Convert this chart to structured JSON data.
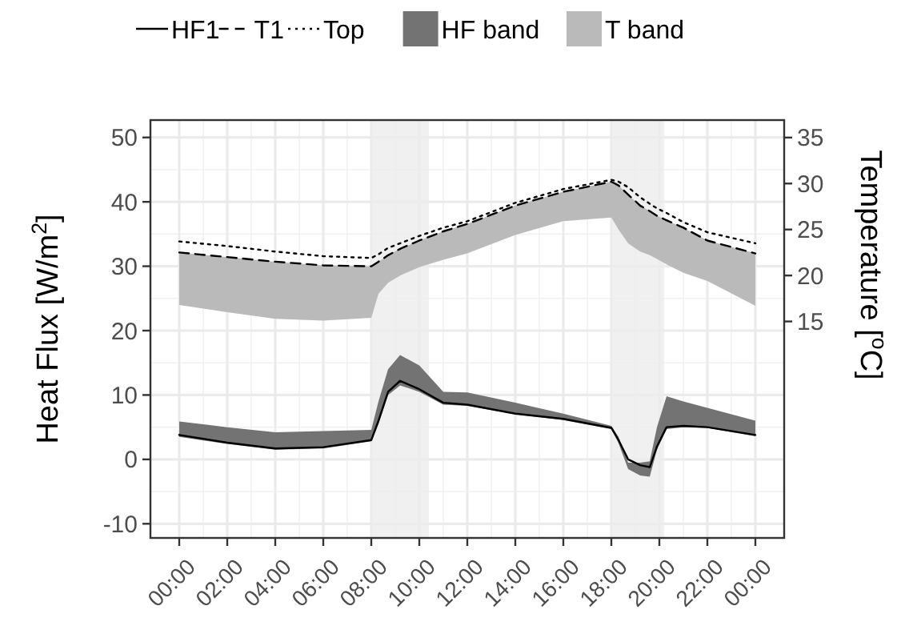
{
  "chart_data": {
    "type": "line",
    "ylabel": "Heat Flux [W/m$^{2}$]",
    "y2label": "Temperature [$^{o}$C]",
    "x": [
      0,
      2,
      4,
      6,
      8,
      8.3,
      8.7,
      9.2,
      10,
      11,
      12,
      14,
      16,
      18,
      18.3,
      18.7,
      19.2,
      19.6,
      19.9,
      20.3,
      21,
      22,
      24
    ],
    "series": [
      {
        "name": "HF1",
        "color": "#000000",
        "line_style": "solid",
        "values": [
          3.8,
          2.6,
          1.7,
          1.9,
          3.0,
          6,
          10.5,
          12.2,
          10.9,
          8.8,
          8.5,
          7.1,
          6.3,
          4.9,
          3,
          0,
          -0.9,
          -1.2,
          2,
          5,
          5.2,
          5,
          3.8
        ]
      },
      {
        "name": "T1",
        "axis": "y2",
        "color": "#000000",
        "line_style": "dashed",
        "values": [
          22.5,
          22,
          21.5,
          21.1,
          21.0,
          21.5,
          22.2,
          22.9,
          23.8,
          24.8,
          25.6,
          27.6,
          29.1,
          30.2,
          29.8,
          28.8,
          27.6,
          27,
          26.5,
          26,
          25.2,
          23.8,
          22.4
        ]
      },
      {
        "name": "Top",
        "axis": "y2",
        "color": "#000000",
        "line_style": "dotted",
        "values": [
          23.7,
          23.2,
          22.6,
          22.1,
          21.9,
          22.3,
          23,
          23.5,
          24.3,
          25.2,
          25.9,
          27.9,
          29.4,
          30.4,
          30.2,
          29.6,
          28.5,
          27.8,
          27.3,
          26.8,
          25.8,
          24.7,
          23.5
        ]
      },
      {
        "name": "HF band",
        "color": "#737373",
        "values": [
          null,
          null,
          null,
          null,
          null,
          null,
          null,
          null,
          null,
          null,
          null,
          null,
          null,
          null,
          null,
          null,
          null,
          null,
          null,
          null,
          null,
          null,
          null
        ],
        "lower": [
          3.5,
          2.4,
          1.5,
          1.7,
          2.8,
          5.5,
          10,
          11.5,
          10.5,
          8.5,
          8.3,
          7,
          6.1,
          4.7,
          2.5,
          -1.5,
          -2.5,
          -2.7,
          1.5,
          4.7,
          5,
          4.9,
          3.6
        ],
        "upper": [
          5.9,
          5,
          4.2,
          4.4,
          4.6,
          9,
          14,
          16.2,
          14.6,
          10.5,
          10.4,
          8.8,
          7.1,
          5.2,
          3.5,
          -0.5,
          -0.5,
          -0.3,
          5,
          9.8,
          9,
          8,
          6
        ]
      },
      {
        "name": "T band",
        "axis": "y2",
        "color": "#bababa",
        "values": [
          null,
          null,
          null,
          null,
          null,
          null,
          null,
          null,
          null,
          null,
          null,
          null,
          null,
          null,
          null,
          null,
          null,
          null,
          null,
          null,
          null,
          null,
          null
        ],
        "lower": [
          16.8,
          16,
          15.3,
          15.1,
          15.4,
          18,
          19.2,
          20,
          20.9,
          21.7,
          22.4,
          24.4,
          25.9,
          26.3,
          25,
          23.5,
          22.6,
          22.2,
          21.8,
          21.2,
          20.3,
          19.4,
          16.7
        ],
        "upper": [
          22.5,
          22,
          21.5,
          21.1,
          21.0,
          21.5,
          22.2,
          22.9,
          23.8,
          24.8,
          25.6,
          27.6,
          29.1,
          30.2,
          29.8,
          28.8,
          27.6,
          27,
          26.5,
          26,
          25.2,
          23.8,
          22.4
        ]
      }
    ],
    "xlim": [
      -1.2,
      25.2
    ],
    "xticks": [
      {
        "value": 0,
        "label": "00:00"
      },
      {
        "value": 2,
        "label": "02:00"
      },
      {
        "value": 4,
        "label": "04:00"
      },
      {
        "value": 6,
        "label": "06:00"
      },
      {
        "value": 8,
        "label": "08:00"
      },
      {
        "value": 10,
        "label": "10:00"
      },
      {
        "value": 12,
        "label": "12:00"
      },
      {
        "value": 14,
        "label": "14:00"
      },
      {
        "value": 16,
        "label": "16:00"
      },
      {
        "value": 18,
        "label": "18:00"
      },
      {
        "value": 20,
        "label": "20:00"
      },
      {
        "value": 22,
        "label": "22:00"
      },
      {
        "value": 24,
        "label": "00:00"
      }
    ],
    "ylim": [
      -12.2,
      52.7
    ],
    "yticks": [
      -10,
      0,
      10,
      20,
      30,
      40,
      50
    ],
    "y2lim": [
      -8.54,
      36.9
    ],
    "y2ticks": [
      15,
      20,
      25,
      30,
      35
    ],
    "bands": [
      {
        "axis": "x",
        "from": 8,
        "to": 10.4,
        "color": "#ececec"
      },
      {
        "axis": "x",
        "from": 18,
        "to": 20.2,
        "color": "#ececec"
      }
    ],
    "grid": true,
    "legend": "top"
  }
}
